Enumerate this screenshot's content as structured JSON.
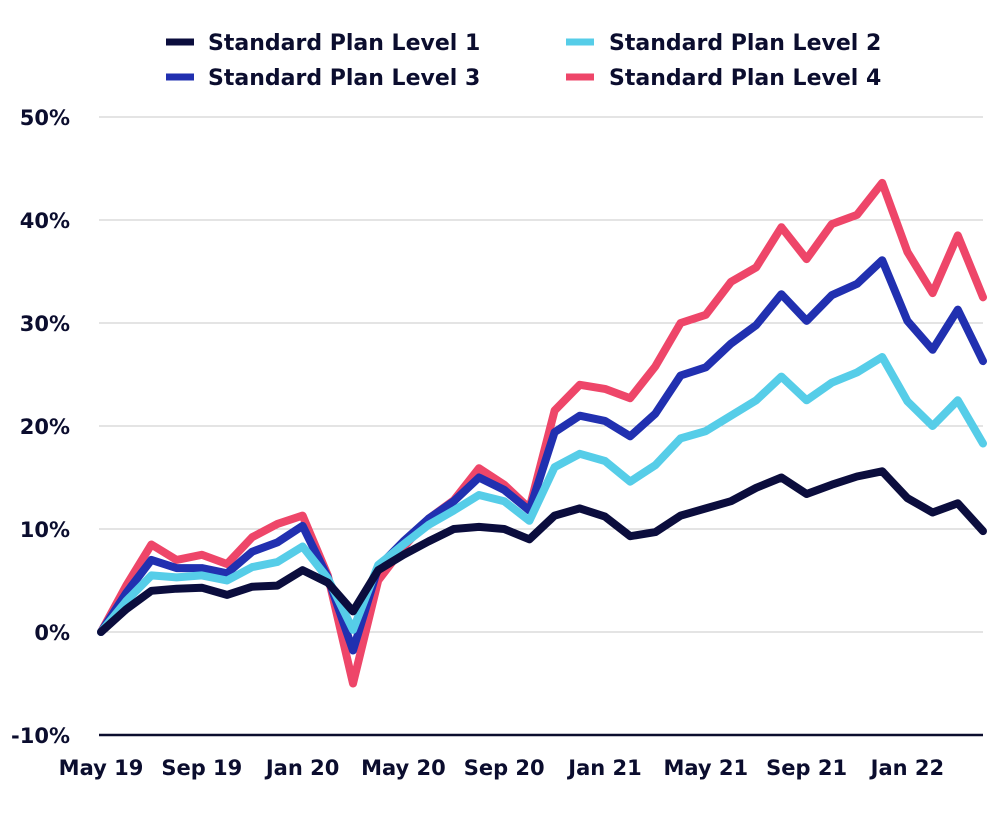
{
  "chart_data": {
    "type": "line",
    "x": [
      "May 19",
      "Jun 19",
      "Jul 19",
      "Aug 19",
      "Sep 19",
      "Oct 19",
      "Nov 19",
      "Dec 19",
      "Jan 20",
      "Feb 20",
      "Mar 20",
      "Apr 20",
      "May 20",
      "Jun 20",
      "Jul 20",
      "Aug 20",
      "Sep 20",
      "Oct 20",
      "Nov 20",
      "Dec 20",
      "Jan 21",
      "Feb 21",
      "Mar 21",
      "Apr 21",
      "May 21",
      "Jun 21",
      "Jul 21",
      "Aug 21",
      "Sep 21",
      "Oct 21",
      "Nov 21",
      "Dec 21",
      "Jan 22",
      "Feb 22",
      "Mar 22",
      "Apr 22"
    ],
    "x_tick_labels": [
      "May 19",
      "Sep 19",
      "Jan 20",
      "May 20",
      "Sep 20",
      "Jan 21",
      "May 21",
      "Sep 21",
      "Jan 22"
    ],
    "ylim": [
      -10,
      50
    ],
    "y_ticks": [
      -10,
      0,
      10,
      20,
      30,
      40,
      50
    ],
    "y_tick_labels": [
      "-10%",
      "0%",
      "10%",
      "20%",
      "30%",
      "40%",
      "50%"
    ],
    "grid": true,
    "legend_position": "top",
    "series": [
      {
        "name": "Standard Plan Level 1",
        "color": "#0b0d3d",
        "values": [
          0,
          2.2,
          4,
          4.2,
          4.3,
          3.6,
          4.4,
          4.5,
          6,
          4.8,
          2,
          6,
          7.5,
          8.8,
          10,
          10.2,
          10,
          9,
          11.3,
          12,
          11.2,
          9.3,
          9.7,
          11.3,
          12,
          12.7,
          14,
          15,
          13.4,
          14.3,
          15.1,
          15.6,
          13,
          11.6,
          12.5,
          9.8
        ]
      },
      {
        "name": "Standard Plan Level 2",
        "color": "#56cde8",
        "values": [
          0,
          3,
          5.5,
          5.3,
          5.5,
          5,
          6.3,
          6.8,
          8.3,
          5.2,
          0.2,
          6.5,
          8.5,
          10.4,
          11.8,
          13.3,
          12.7,
          10.8,
          16,
          17.3,
          16.6,
          14.6,
          16.2,
          18.8,
          19.5,
          21,
          22.5,
          24.8,
          22.5,
          24.2,
          25.2,
          26.7,
          22.4,
          20,
          22.5,
          18.3
        ]
      },
      {
        "name": "Standard Plan Level 3",
        "color": "#2130b0",
        "values": [
          0,
          3.8,
          7,
          6.2,
          6.2,
          5.7,
          7.8,
          8.7,
          10.3,
          5.3,
          -1.8,
          6.3,
          8.8,
          11,
          12.7,
          15,
          13.8,
          11.8,
          19.4,
          21,
          20.5,
          19,
          21.2,
          24.9,
          25.7,
          28,
          29.8,
          32.8,
          30.2,
          32.7,
          33.8,
          36.1,
          30.2,
          27.4,
          31.3,
          26.3
        ]
      },
      {
        "name": "Standard Plan Level 4",
        "color": "#ee4669",
        "values": [
          0,
          4.5,
          8.5,
          7,
          7.5,
          6.6,
          9.2,
          10.5,
          11.3,
          5.5,
          -5,
          5,
          8.2,
          11,
          12.8,
          15.9,
          14.3,
          12,
          21.5,
          24,
          23.6,
          22.7,
          25.8,
          30,
          30.8,
          34,
          35.4,
          39.3,
          36.2,
          39.6,
          40.5,
          43.6,
          36.9,
          32.9,
          38.5,
          32.5
        ]
      }
    ]
  }
}
